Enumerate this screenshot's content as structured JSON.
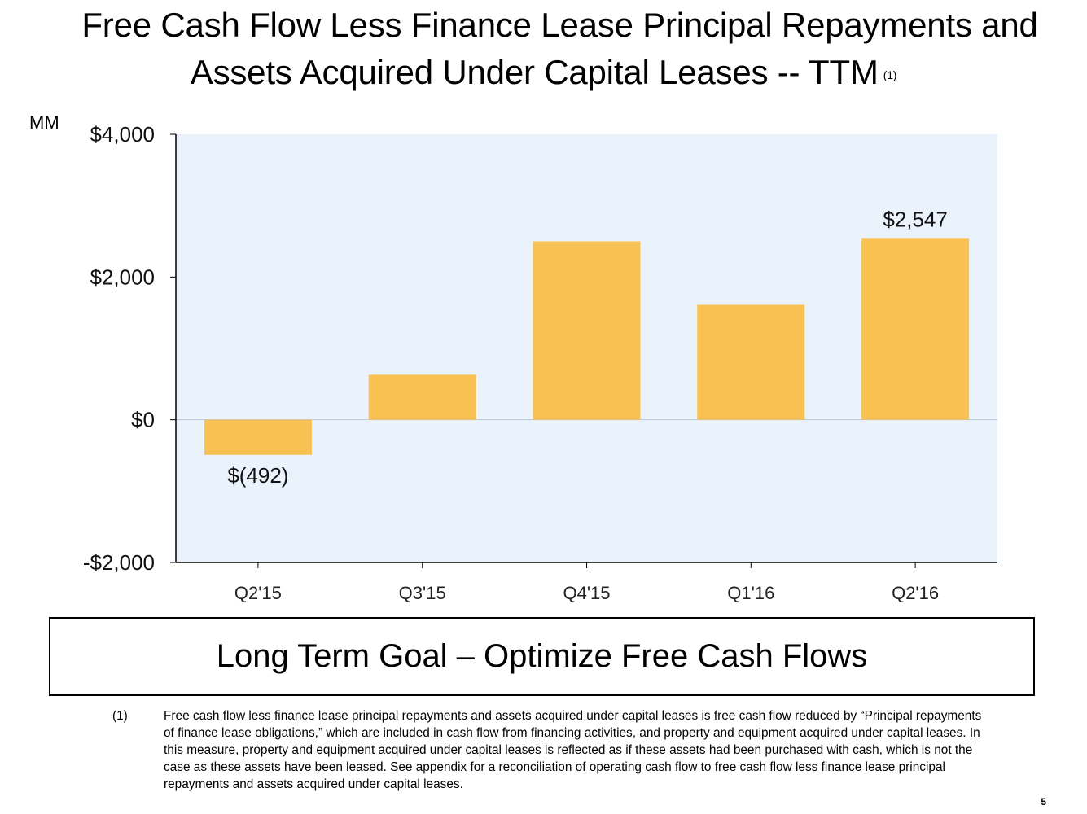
{
  "slide": {
    "title_line1": "Free Cash Flow Less Finance Lease Principal Repayments and",
    "title_line2": "Assets Acquired Under Capital Leases -- TTM",
    "title_footnote_ref": "(1)",
    "unit_label": "MM",
    "goal_text": "Long Term Goal – Optimize Free Cash Flows",
    "footnote_marker": "(1)",
    "footnote_text": "Free cash flow less finance lease principal repayments and assets acquired under capital leases is free cash flow reduced by “Principal repayments of finance lease obligations,” which are included in cash flow from financing activities, and property and equipment acquired under capital leases. In this measure, property and equipment acquired under capital leases is reflected as if these assets had been purchased with cash, which is not the case as these assets have been leased. See appendix for a reconciliation of operating cash flow to free cash flow less finance lease principal repayments and assets acquired under capital leases.",
    "page_number": "5"
  },
  "chart_data": {
    "type": "bar",
    "categories": [
      "Q2'15",
      "Q3'15",
      "Q4'15",
      "Q1'16",
      "Q2'16"
    ],
    "values": [
      -492,
      630,
      2500,
      1610,
      2547
    ],
    "data_labels": [
      "$(492)",
      "",
      "",
      "",
      "$2,547"
    ],
    "ylim": [
      -2000,
      4000
    ],
    "yticks": [
      -2000,
      0,
      2000,
      4000
    ],
    "ytick_labels": [
      "-$2,000",
      "$0",
      "$2,000",
      "$4,000"
    ],
    "ylabel": "MM",
    "grid": false,
    "colors": {
      "bar": "#F9C152",
      "plot_bg": "#EAF2FC",
      "zero_line": "#B8C8D8",
      "axis": "#000000"
    }
  }
}
